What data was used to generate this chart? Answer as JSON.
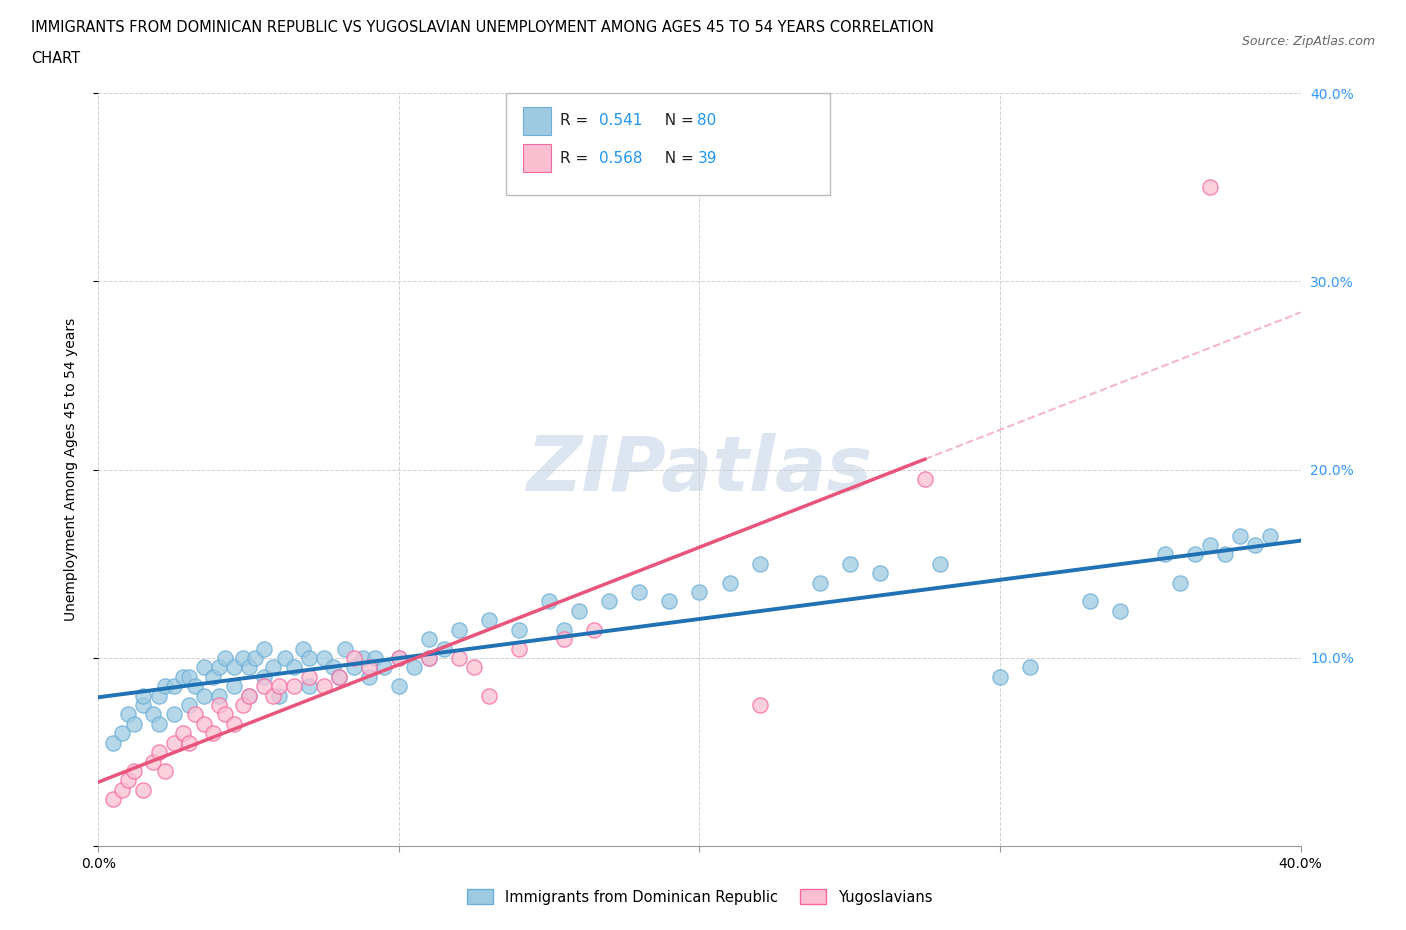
{
  "title_line1": "IMMIGRANTS FROM DOMINICAN REPUBLIC VS YUGOSLAVIAN UNEMPLOYMENT AMONG AGES 45 TO 54 YEARS CORRELATION",
  "title_line2": "CHART",
  "source_text": "Source: ZipAtlas.com",
  "ylabel": "Unemployment Among Ages 45 to 54 years",
  "xlim": [
    0.0,
    0.4
  ],
  "ylim": [
    0.0,
    0.4
  ],
  "color_blue": "#9ecae1",
  "color_pink": "#fcbfd2",
  "trendline_blue_color": "#2171b5",
  "trendline_pink_color": "#e8547a",
  "trendline_dashed_color": "#f4b8ca",
  "watermark_color": "#dde5f0",
  "grid_color": "#cccccc",
  "background_color": "#ffffff",
  "blue_scatter": {
    "x": [
      0.005,
      0.008,
      0.01,
      0.012,
      0.015,
      0.015,
      0.018,
      0.02,
      0.02,
      0.022,
      0.025,
      0.025,
      0.028,
      0.03,
      0.03,
      0.032,
      0.035,
      0.035,
      0.038,
      0.04,
      0.04,
      0.042,
      0.045,
      0.045,
      0.048,
      0.05,
      0.05,
      0.052,
      0.055,
      0.055,
      0.058,
      0.06,
      0.062,
      0.065,
      0.068,
      0.07,
      0.07,
      0.075,
      0.078,
      0.08,
      0.082,
      0.085,
      0.088,
      0.09,
      0.092,
      0.095,
      0.1,
      0.1,
      0.105,
      0.11,
      0.11,
      0.115,
      0.12,
      0.13,
      0.14,
      0.15,
      0.155,
      0.16,
      0.17,
      0.18,
      0.19,
      0.2,
      0.21,
      0.22,
      0.24,
      0.25,
      0.26,
      0.28,
      0.3,
      0.31,
      0.33,
      0.34,
      0.355,
      0.36,
      0.365,
      0.37,
      0.375,
      0.38,
      0.385,
      0.39
    ],
    "y": [
      0.055,
      0.06,
      0.07,
      0.065,
      0.075,
      0.08,
      0.07,
      0.065,
      0.08,
      0.085,
      0.07,
      0.085,
      0.09,
      0.075,
      0.09,
      0.085,
      0.08,
      0.095,
      0.09,
      0.08,
      0.095,
      0.1,
      0.085,
      0.095,
      0.1,
      0.08,
      0.095,
      0.1,
      0.09,
      0.105,
      0.095,
      0.08,
      0.1,
      0.095,
      0.105,
      0.085,
      0.1,
      0.1,
      0.095,
      0.09,
      0.105,
      0.095,
      0.1,
      0.09,
      0.1,
      0.095,
      0.085,
      0.1,
      0.095,
      0.1,
      0.11,
      0.105,
      0.115,
      0.12,
      0.115,
      0.13,
      0.115,
      0.125,
      0.13,
      0.135,
      0.13,
      0.135,
      0.14,
      0.15,
      0.14,
      0.15,
      0.145,
      0.15,
      0.09,
      0.095,
      0.13,
      0.125,
      0.155,
      0.14,
      0.155,
      0.16,
      0.155,
      0.165,
      0.16,
      0.165
    ]
  },
  "pink_scatter": {
    "x": [
      0.005,
      0.008,
      0.01,
      0.012,
      0.015,
      0.018,
      0.02,
      0.022,
      0.025,
      0.028,
      0.03,
      0.032,
      0.035,
      0.038,
      0.04,
      0.042,
      0.045,
      0.048,
      0.05,
      0.055,
      0.058,
      0.06,
      0.065,
      0.07,
      0.075,
      0.08,
      0.085,
      0.09,
      0.1,
      0.11,
      0.12,
      0.125,
      0.13,
      0.14,
      0.155,
      0.165,
      0.22,
      0.275,
      0.37
    ],
    "y": [
      0.025,
      0.03,
      0.035,
      0.04,
      0.03,
      0.045,
      0.05,
      0.04,
      0.055,
      0.06,
      0.055,
      0.07,
      0.065,
      0.06,
      0.075,
      0.07,
      0.065,
      0.075,
      0.08,
      0.085,
      0.08,
      0.085,
      0.085,
      0.09,
      0.085,
      0.09,
      0.1,
      0.095,
      0.1,
      0.1,
      0.1,
      0.095,
      0.08,
      0.105,
      0.11,
      0.115,
      0.075,
      0.195,
      0.35
    ]
  }
}
